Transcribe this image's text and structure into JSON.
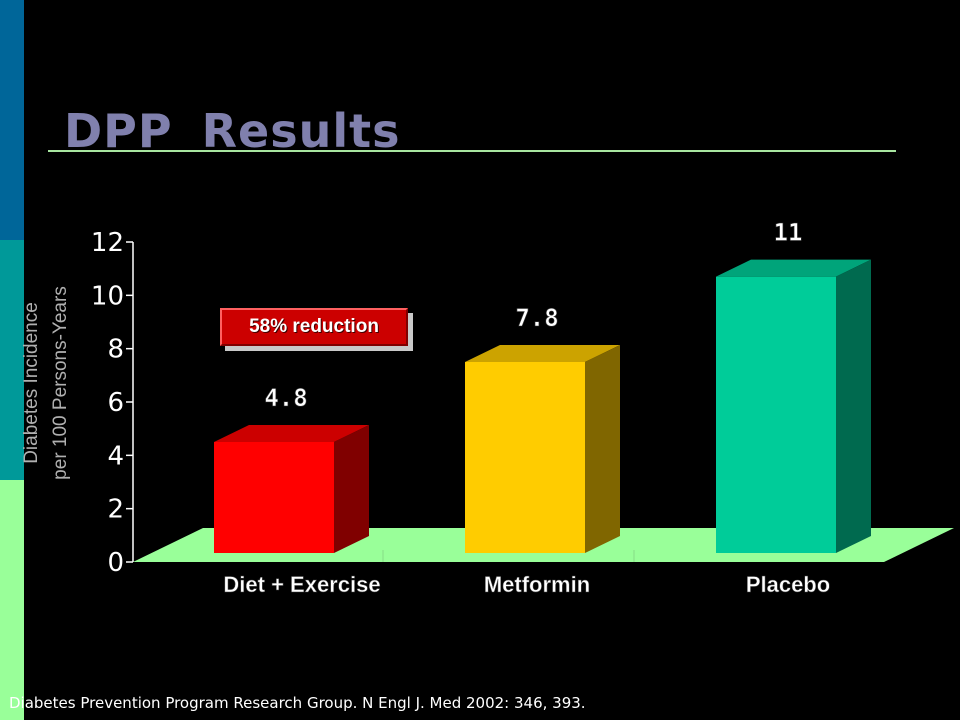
{
  "slide": {
    "title": "DPP  Results",
    "citation": "Diabetes Prevention Program Research Group. N Engl J. Med 2002: 346, 393.",
    "annotation": "58% reduction"
  },
  "colors": {
    "title": "#8080ad",
    "rule": "#a8e6a0",
    "floor": "#99ff99",
    "sidebar": [
      "#006699",
      "#009999",
      "#99ff99"
    ],
    "annotation_fill": "#cc0000"
  },
  "chart_data": {
    "type": "bar",
    "categories": [
      "Diet + Exercise",
      "Metformin",
      "Placebo"
    ],
    "values": [
      4.8,
      7.8,
      11
    ],
    "data_labels": [
      "4.8",
      "7.8",
      "11"
    ],
    "ylabel_lines": [
      "Diabetes Incidence",
      "per 100 Persons-Years"
    ],
    "yticks": [
      "0",
      "2",
      "4",
      "6",
      "8",
      "10",
      "12"
    ],
    "ylim": [
      0,
      12
    ],
    "bar_colors": [
      {
        "front": "#ff0000",
        "side": "#800000",
        "top": "#cc0000"
      },
      {
        "front": "#ffcc00",
        "side": "#806600",
        "top": "#cca300"
      },
      {
        "front": "#00cc99",
        "side": "#006a4f",
        "top": "#00a47a"
      }
    ]
  }
}
